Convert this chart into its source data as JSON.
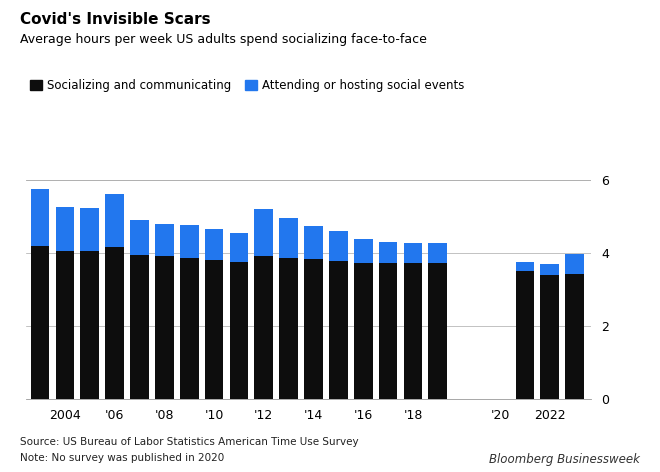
{
  "years": [
    2003,
    2004,
    2005,
    2006,
    2007,
    2008,
    2009,
    2010,
    2011,
    2012,
    2013,
    2014,
    2015,
    2016,
    2017,
    2018,
    2019,
    2021,
    2022,
    2023
  ],
  "socializing": [
    4.2,
    4.05,
    4.05,
    4.15,
    3.95,
    3.9,
    3.85,
    3.8,
    3.75,
    3.9,
    3.85,
    3.82,
    3.78,
    3.72,
    3.72,
    3.72,
    3.72,
    3.5,
    3.38,
    3.42
  ],
  "attending": [
    1.55,
    1.2,
    1.18,
    1.45,
    0.95,
    0.9,
    0.92,
    0.85,
    0.8,
    1.3,
    1.1,
    0.92,
    0.82,
    0.65,
    0.58,
    0.55,
    0.55,
    0.25,
    0.32,
    0.55
  ],
  "bar_color_socializing": "#0d0d0d",
  "bar_color_attending": "#2277ee",
  "title_bold": "Covid's Invisible Scars",
  "title_sub": "Average hours per week US adults spend socializing face-to-face",
  "legend_label_1": "Socializing and communicating",
  "legend_label_2": "Attending or hosting social events",
  "source_text": "Source: US Bureau of Labor Statistics American Time Use Survey",
  "note_text": "Note: No survey was published in 2020",
  "branding": "Bloomberg Businessweek",
  "ylim": [
    0,
    6.4
  ],
  "yticks": [
    0,
    2,
    4,
    6
  ],
  "background_color": "#ffffff",
  "grid_color": "#aaaaaa",
  "xtick_years": [
    2004,
    2006,
    2008,
    2010,
    2012,
    2014,
    2016,
    2018,
    2020,
    2022
  ],
  "xtick_labels": [
    "2004",
    "'06",
    "'08",
    "'10",
    "'12",
    "'14",
    "'16",
    "'18",
    "'20",
    "2022"
  ]
}
